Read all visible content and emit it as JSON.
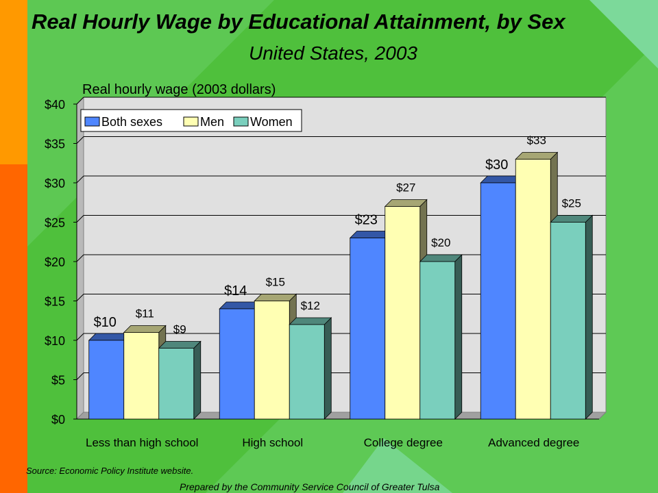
{
  "page": {
    "title": "Real Hourly Wage by Educational Attainment, by Sex",
    "subtitle": "United States, 2003",
    "source": "Source:  Economic Policy Institute website.",
    "credit": "Prepared by the Community Service Council of Greater Tulsa"
  },
  "colors": {
    "background_green": "#4fc03c",
    "light_green": "#7cd99a",
    "orange_band": "#ff9900",
    "red_orange_band": "#ff6600",
    "plot_bg": "#e0e0e0"
  },
  "chart_data": {
    "type": "bar",
    "ylabel": "Real hourly wage (2003 dollars)",
    "categories": [
      "Less than high school",
      "High school",
      "College degree",
      "Advanced degree"
    ],
    "series": [
      {
        "name": "Both sexes",
        "color": "#4f86ff",
        "values": [
          10,
          14,
          23,
          30
        ],
        "labels": [
          "$10",
          "$14",
          "$23",
          "$30"
        ]
      },
      {
        "name": "Men",
        "color": "#ffffb3",
        "values": [
          11,
          15,
          27,
          33
        ],
        "labels": [
          "$11",
          "$15",
          "$27",
          "$33"
        ]
      },
      {
        "name": "Women",
        "color": "#7acfbd",
        "values": [
          9,
          12,
          20,
          25
        ],
        "labels": [
          "$9",
          "$12",
          "$20",
          "$25"
        ]
      }
    ],
    "ylim": [
      0,
      40
    ],
    "yticks": [
      0,
      5,
      10,
      15,
      20,
      25,
      30,
      35,
      40
    ],
    "ytick_labels": [
      "$0",
      "$5",
      "$10",
      "$15",
      "$20",
      "$25",
      "$30",
      "$35",
      "$40"
    ],
    "grid": true,
    "legend_position": "top-left"
  }
}
